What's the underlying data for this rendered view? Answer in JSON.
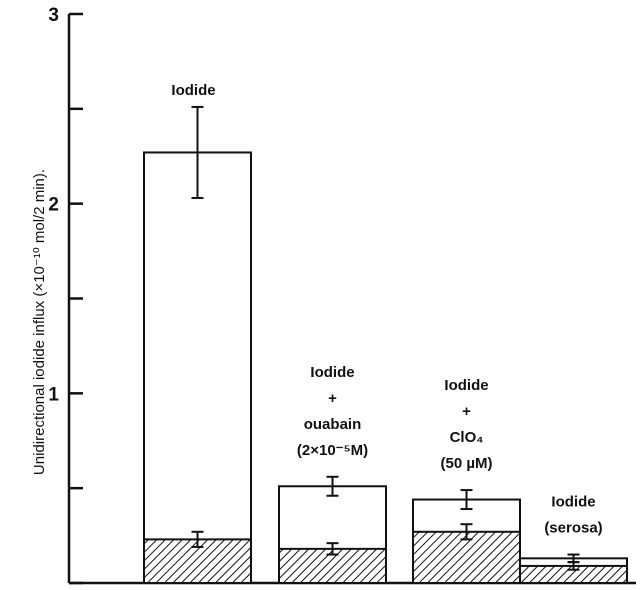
{
  "chart_data": {
    "type": "bar",
    "ylabel": "Unidirectional iodide influx (×10⁻¹⁰ mol/2 min).",
    "ylim": [
      0,
      3
    ],
    "yticks": [
      {
        "value": 0,
        "label": ""
      },
      {
        "value": 0.5,
        "label": ""
      },
      {
        "value": 1,
        "label": "1"
      },
      {
        "value": 1.5,
        "label": ""
      },
      {
        "value": 2,
        "label": "2"
      },
      {
        "value": 2.5,
        "label": ""
      },
      {
        "value": 3,
        "label": "3"
      }
    ],
    "categories": [
      {
        "label_lines": [
          "Iodide"
        ]
      },
      {
        "label_lines": [
          "Iodide",
          "+",
          "ouabain",
          "(2×10⁻⁵M)"
        ]
      },
      {
        "label_lines": [
          "Iodide",
          "+",
          "ClO₄",
          "(50 µM)"
        ]
      },
      {
        "label_lines": [
          "Iodide",
          "(serosa)"
        ]
      }
    ],
    "series": [
      {
        "values": [
          0.23,
          0.18,
          0.27,
          0.09
        ],
        "errors": [
          0.04,
          0.03,
          0.04,
          0.02
        ],
        "pattern": "hatched"
      },
      {
        "values": [
          2.27,
          0.51,
          0.44,
          0.13
        ],
        "errors": [
          0.24,
          0.05,
          0.05,
          0.02
        ],
        "pattern": "open"
      }
    ],
    "grid": false,
    "colors": {
      "line": "#111111",
      "hatch": "#111111",
      "fill": "#ffffff"
    }
  }
}
